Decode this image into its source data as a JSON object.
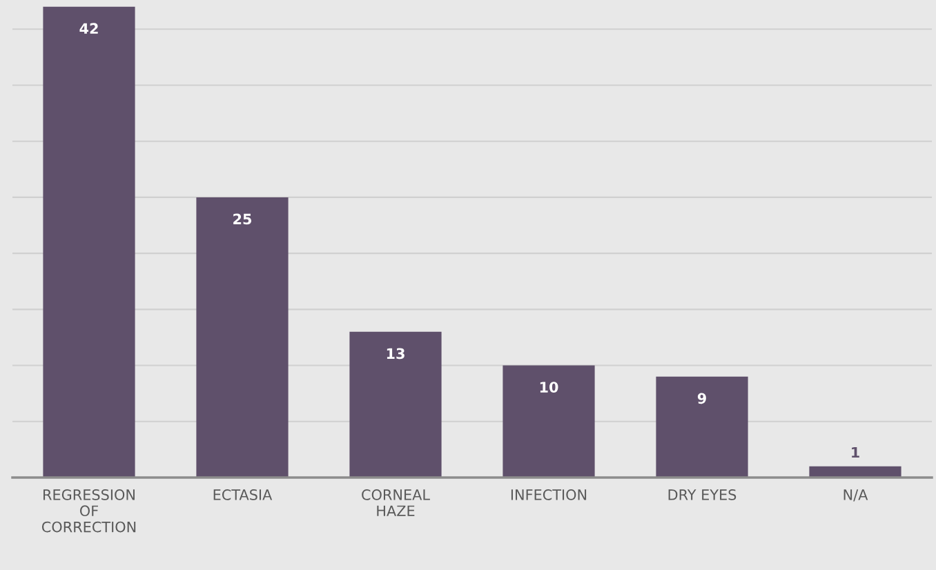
{
  "chart_data": {
    "type": "bar",
    "categories": [
      "REGRESSION OF CORRECTION",
      "ECTASIA",
      "CORNEAL HAZE",
      "INFECTION",
      "DRY EYES",
      "N/A"
    ],
    "values": [
      42,
      25,
      13,
      10,
      9,
      1
    ],
    "color": "#5f506b",
    "ylim": [
      0,
      42.6
    ],
    "yticks": [
      {
        "value": 0,
        "label": null
      },
      {
        "value": 5,
        "label": null
      },
      {
        "value": 10,
        "label": null
      },
      {
        "value": 15,
        "label": null
      },
      {
        "value": 20,
        "label": null
      },
      {
        "value": 25,
        "label": null
      },
      {
        "value": 30,
        "label": null
      },
      {
        "value": 35,
        "label": null
      },
      {
        "value": 40,
        "label": null
      }
    ],
    "tick_labels": "x",
    "grid": "y",
    "data_labels": true
  }
}
